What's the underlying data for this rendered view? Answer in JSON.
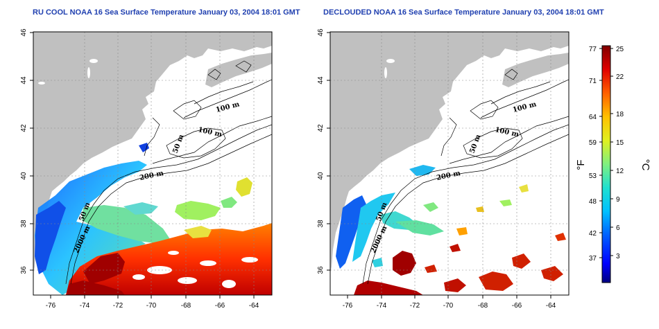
{
  "panels": [
    {
      "title": "RU COOL NOAA 16 Sea Surface Temperature January 03, 2004 18:01 GMT"
    },
    {
      "title": "DECLOUDED NOAA 16 Sea Surface Temperature January 03, 2004 18:01 GMT"
    }
  ],
  "axes": {
    "lon_ticks": [
      "-76",
      "-74",
      "-72",
      "-70",
      "-68",
      "-66",
      "-64"
    ],
    "lat_ticks": [
      "36",
      "38",
      "40",
      "42",
      "44",
      "46"
    ]
  },
  "contour_labels": [
    "100 m",
    "100 m",
    "50 m",
    "200 m",
    "50 m",
    "2000 m"
  ],
  "colorbar": {
    "fahrenheit_ticks": [
      "77",
      "71",
      "64",
      "59",
      "53",
      "48",
      "42",
      "37"
    ],
    "celsius_ticks": [
      "25",
      "22",
      "18",
      "15",
      "12",
      "9",
      "6",
      "3"
    ],
    "fahrenheit_label": "°F",
    "celsius_label": "°C"
  },
  "colors": {
    "land": "#c0c0c0",
    "title": "#2040b0",
    "colormap": [
      "#000080",
      "#0000ff",
      "#0060ff",
      "#00c0ff",
      "#20e0d0",
      "#80f080",
      "#e0f020",
      "#ffc000",
      "#ff6000",
      "#e00000",
      "#800000"
    ]
  }
}
